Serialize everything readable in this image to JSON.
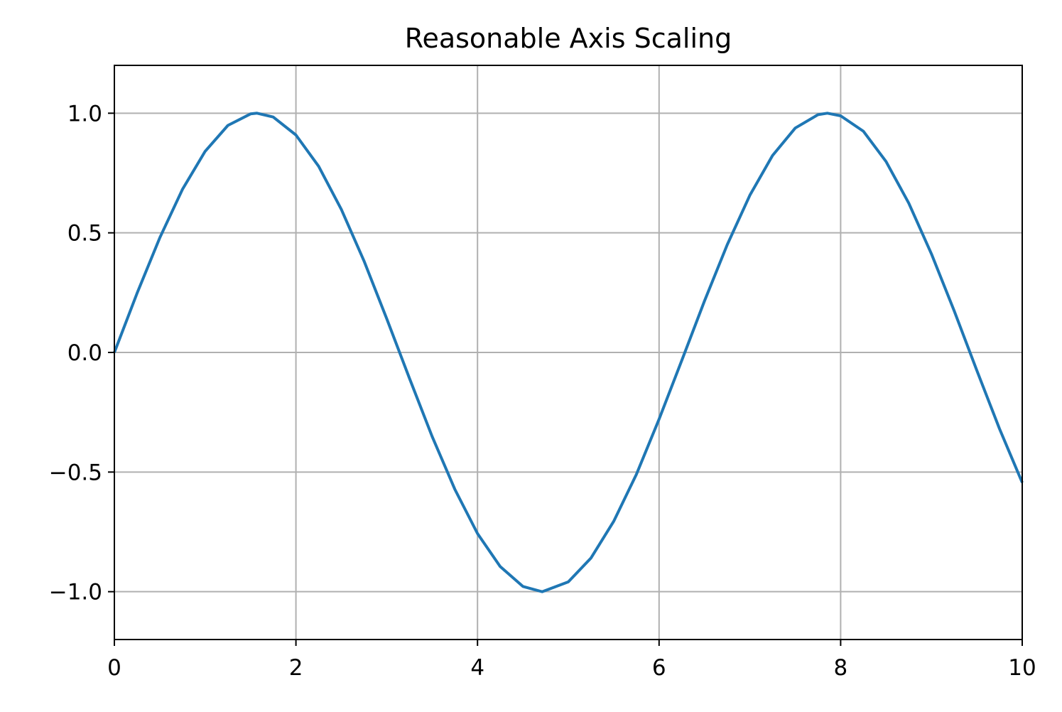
{
  "chart_data": {
    "type": "line",
    "title": "Reasonable Axis Scaling",
    "xlabel": "",
    "ylabel": "",
    "xlim": [
      0,
      10
    ],
    "ylim": [
      -1.2,
      1.2
    ],
    "x_ticks": [
      0,
      2,
      4,
      6,
      8,
      10
    ],
    "x_tick_labels": [
      "0",
      "2",
      "4",
      "6",
      "8",
      "10"
    ],
    "y_ticks": [
      -1.0,
      -0.5,
      0.0,
      0.5,
      1.0
    ],
    "y_tick_labels": [
      "−1.0",
      "−0.5",
      "0.0",
      "0.5",
      "1.0"
    ],
    "grid": true,
    "legend": "none",
    "colors": {
      "line": "#1f77b4",
      "grid": "#b0b0b0",
      "axes": "#000000"
    },
    "series": [
      {
        "x": [
          0,
          0.25,
          0.5,
          0.75,
          1.0,
          1.25,
          1.5,
          1.571,
          1.75,
          2.0,
          2.25,
          2.5,
          2.75,
          3.0,
          3.25,
          3.5,
          3.75,
          4.0,
          4.25,
          4.5,
          4.712,
          5.0,
          5.25,
          5.5,
          5.75,
          6.0,
          6.25,
          6.5,
          6.75,
          7.0,
          7.25,
          7.5,
          7.75,
          7.854,
          8.0,
          8.25,
          8.5,
          8.75,
          9.0,
          9.25,
          9.5,
          9.75,
          10.0
        ],
        "values": [
          0.0,
          0.247,
          0.479,
          0.682,
          0.841,
          0.949,
          0.997,
          1.0,
          0.984,
          0.909,
          0.778,
          0.598,
          0.382,
          0.141,
          -0.108,
          -0.351,
          -0.572,
          -0.757,
          -0.895,
          -0.978,
          -1.0,
          -0.959,
          -0.859,
          -0.706,
          -0.51,
          -0.279,
          -0.033,
          0.215,
          0.45,
          0.657,
          0.823,
          0.938,
          0.994,
          1.0,
          0.989,
          0.925,
          0.798,
          0.624,
          0.412,
          0.174,
          -0.075,
          -0.319,
          -0.544
        ]
      }
    ]
  }
}
